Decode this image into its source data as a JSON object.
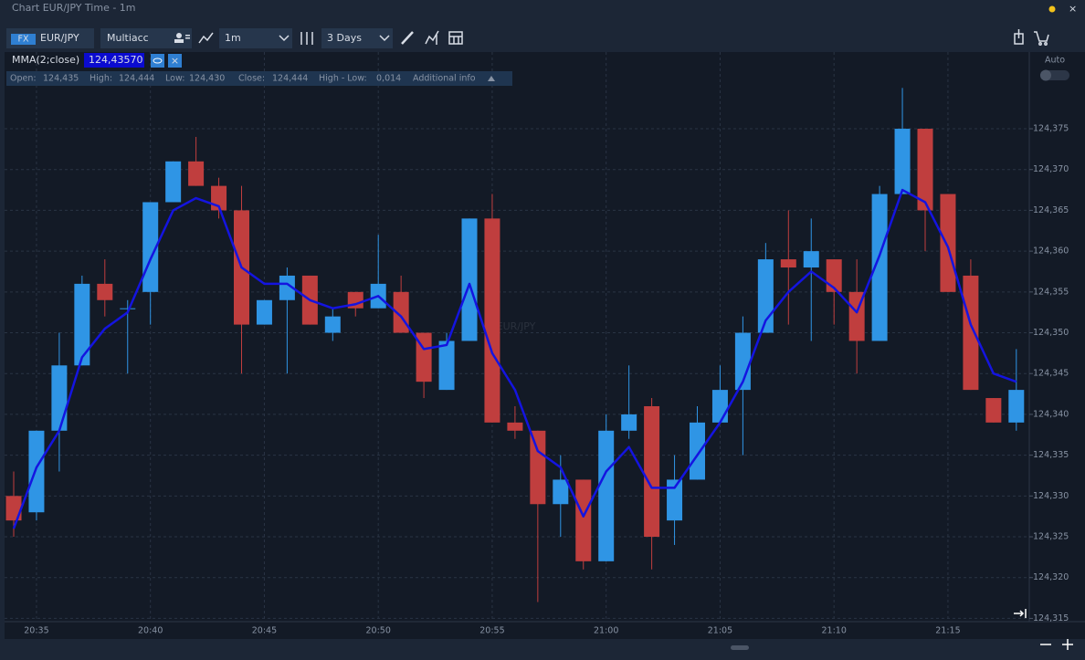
{
  "window": {
    "title": "Chart EUR/JPY Time - 1m"
  },
  "toolbar": {
    "market": "FX",
    "symbol": "EUR/JPY",
    "account": "Multiacc",
    "timeframe": "1m",
    "range": "3 Days"
  },
  "info": {
    "items": [
      {
        "label": "Open:",
        "value": "124,435"
      },
      {
        "label": "High:",
        "value": "124,444"
      },
      {
        "label": "Low:",
        "value": "124,430"
      },
      {
        "label": "Close:",
        "value": "124,444"
      },
      {
        "label": "High - Low:",
        "value": "0,014"
      }
    ],
    "more": "Additional info"
  },
  "scale_toggle": "Auto",
  "chart_data": {
    "type": "candlestick",
    "watermark": "EUR/JPY",
    "categories": [
      null,
      "20:35",
      null,
      null,
      null,
      null,
      "20:40",
      null,
      null,
      null,
      null,
      "20:45",
      null,
      null,
      null,
      null,
      "20:50",
      null,
      null,
      null,
      null,
      "20:55",
      null,
      null,
      null,
      null,
      "21:00",
      null,
      null,
      null,
      null,
      "21:05",
      null,
      null,
      null,
      null,
      "21:10",
      null,
      null,
      null,
      null,
      "21:15",
      null,
      null,
      null
    ],
    "open": [
      124.33,
      124.328,
      124.338,
      124.346,
      124.356,
      124.353,
      124.355,
      124.366,
      124.371,
      124.368,
      124.365,
      124.351,
      124.354,
      124.357,
      124.35,
      124.355,
      124.353,
      124.355,
      124.35,
      124.343,
      124.349,
      124.364,
      124.339,
      124.338,
      124.329,
      124.332,
      124.322,
      124.338,
      124.341,
      124.327,
      124.332,
      124.339,
      124.343,
      124.35,
      124.359,
      124.358,
      124.359,
      124.355,
      124.349,
      124.367,
      124.375,
      124.367,
      124.357,
      124.342,
      124.339
    ],
    "high": [
      124.333,
      124.338,
      124.35,
      124.357,
      124.359,
      124.354,
      124.366,
      124.371,
      124.374,
      124.369,
      124.368,
      124.354,
      124.358,
      124.357,
      124.353,
      124.355,
      124.362,
      124.357,
      124.35,
      124.35,
      124.364,
      124.367,
      124.341,
      124.338,
      124.335,
      124.332,
      124.34,
      124.346,
      124.342,
      124.335,
      124.341,
      124.346,
      124.352,
      124.361,
      124.365,
      124.364,
      124.359,
      124.359,
      124.368,
      124.38,
      124.375,
      124.367,
      124.359,
      124.342,
      124.348
    ],
    "low": [
      124.325,
      124.327,
      124.333,
      124.346,
      124.352,
      124.345,
      124.351,
      124.366,
      124.368,
      124.364,
      124.345,
      124.351,
      124.345,
      124.351,
      124.349,
      124.352,
      124.353,
      124.35,
      124.342,
      124.343,
      124.349,
      124.339,
      124.337,
      124.317,
      124.325,
      124.321,
      124.322,
      124.337,
      124.321,
      124.324,
      124.332,
      124.339,
      124.335,
      124.35,
      124.351,
      124.349,
      124.351,
      124.345,
      124.349,
      124.367,
      124.36,
      124.355,
      124.343,
      124.339,
      124.338
    ],
    "close": [
      124.327,
      124.338,
      124.346,
      124.356,
      124.354,
      124.353,
      124.366,
      124.371,
      124.368,
      124.365,
      124.351,
      124.354,
      124.357,
      124.351,
      124.352,
      124.353,
      124.356,
      124.35,
      124.344,
      124.349,
      124.364,
      124.339,
      124.338,
      124.329,
      124.332,
      124.322,
      124.338,
      124.34,
      124.325,
      124.332,
      124.339,
      124.343,
      124.35,
      124.359,
      124.358,
      124.36,
      124.355,
      124.349,
      124.367,
      124.375,
      124.365,
      124.355,
      124.343,
      124.339,
      124.343
    ],
    "colors": {
      "up": "#2f95e5",
      "down": "#c03e3e"
    },
    "overlay": {
      "name": "MMA(2;close)",
      "value_label": "124,43570",
      "color": "#1414e0",
      "values": [
        124.326,
        124.3335,
        124.338,
        124.347,
        124.3505,
        124.3525,
        124.359,
        124.365,
        124.3665,
        124.3655,
        124.358,
        124.356,
        124.356,
        124.354,
        124.353,
        124.3535,
        124.3545,
        124.352,
        124.348,
        124.3485,
        124.356,
        124.3475,
        124.343,
        124.3355,
        124.3335,
        124.3275,
        124.333,
        124.336,
        124.331,
        124.331,
        124.335,
        124.339,
        124.344,
        124.3515,
        124.355,
        124.3575,
        124.3555,
        124.3525,
        124.3595,
        124.3675,
        124.366,
        124.3605,
        124.351,
        124.345,
        124.344
      ]
    },
    "ylim": [
      124.3146,
      124.3844
    ],
    "yticks": [
      {
        "value": 124.315,
        "label": "124,315"
      },
      {
        "value": 124.32,
        "label": "124,320"
      },
      {
        "value": 124.325,
        "label": "124,325"
      },
      {
        "value": 124.33,
        "label": "124,330"
      },
      {
        "value": 124.335,
        "label": "124,335"
      },
      {
        "value": 124.34,
        "label": "124,340"
      },
      {
        "value": 124.345,
        "label": "124,345"
      },
      {
        "value": 124.35,
        "label": "124,350"
      },
      {
        "value": 124.355,
        "label": "124,355"
      },
      {
        "value": 124.36,
        "label": "124,360"
      },
      {
        "value": 124.365,
        "label": "124,365"
      },
      {
        "value": 124.37,
        "label": "124,370"
      },
      {
        "value": 124.375,
        "label": "124,375"
      }
    ],
    "grid": true
  }
}
